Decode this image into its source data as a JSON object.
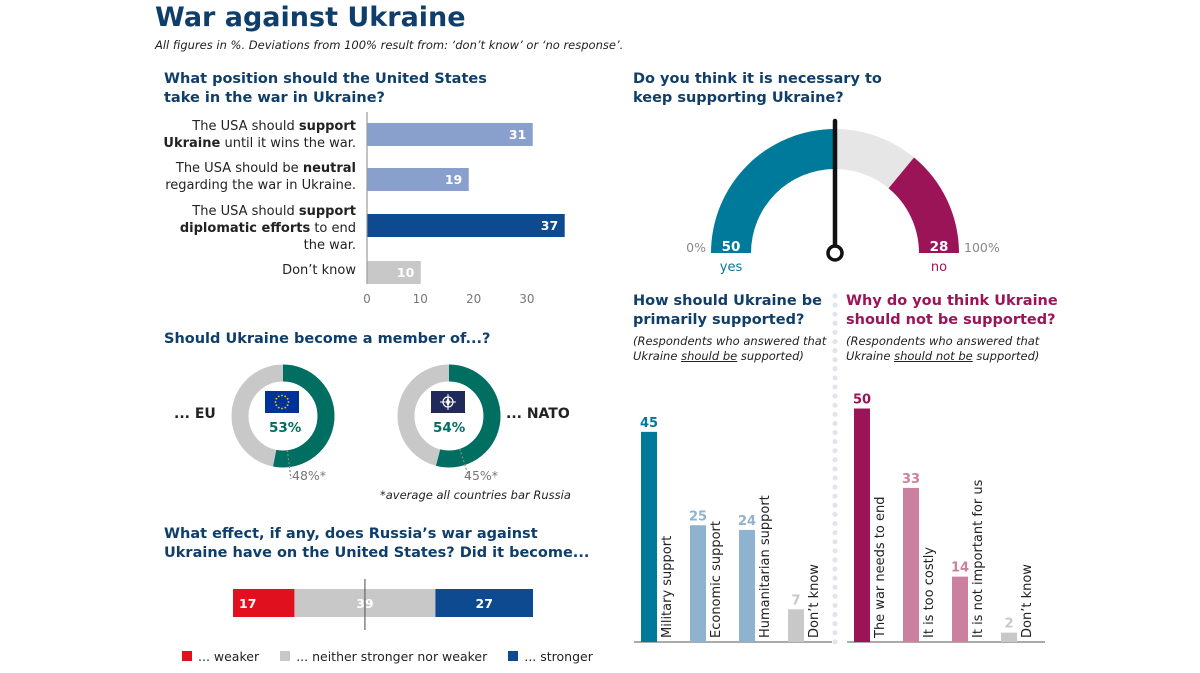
{
  "header": {
    "title": "War against Ukraine",
    "subtitle": "All figures in %. Deviations from 100% result from: ‘don’t know’ or ‘no response’."
  },
  "colors": {
    "navy": "#0f3e6b",
    "teal": "#007a9a",
    "lightblue": "#8aa0cc",
    "darkblue": "#0d4a8f",
    "grey": "#c8c8c8",
    "green": "#006e60",
    "red": "#e0101e",
    "magenta": "#9b1458",
    "pink": "#cc809f",
    "paleblue": "#8fb3cf"
  },
  "q_us_position": {
    "question_line1": "What position should the United States",
    "question_line2": "take in the war in Ukraine?",
    "labels": [
      {
        "pre": "The USA should ",
        "bold": "support",
        "line2_bold": "Ukraine",
        "line2_rest": " until it wins the war.",
        "line3": ""
      },
      {
        "pre": "The USA should be ",
        "bold": "neutral",
        "line2_bold": "",
        "line2_rest": "regarding the war in Ukraine.",
        "line3": ""
      },
      {
        "pre": "The USA should ",
        "bold": "support",
        "line2_bold": "diplomatic efforts",
        "line2_rest": " to end",
        "line3": "the war."
      },
      {
        "pre": "Don’t know",
        "bold": "",
        "line2_bold": "",
        "line2_rest": "",
        "line3": ""
      }
    ]
  },
  "q_membership": {
    "question": "Should Ukraine become a member of...?",
    "eu_label": "... EU",
    "nato_label": "... NATO",
    "footnote": "*average all countries bar Russia"
  },
  "q_effect": {
    "question_line1": "What effect, if any, does Russia’s war against",
    "question_line2": "Ukraine have on the United States? Did it become..."
  },
  "q_support_needed": {
    "question_line1": "Do you think it is necessary to",
    "question_line2": "keep supporting Ukraine?"
  },
  "q_how_support": {
    "question_line1": "How should Ukraine be",
    "question_line2": "primarily supported?",
    "note_line1": "(Respondents who answered that",
    "note_line2_pre": "Ukraine ",
    "note_line2_u": "should be",
    "note_line2_post": " supported)"
  },
  "q_why_not": {
    "question_line1": "Why do you think Ukraine",
    "question_line2": "should not be supported?",
    "note_line1": "(Respondents who answered that",
    "note_line2_pre": "Ukraine ",
    "note_line2_u": "should not be",
    "note_line2_post": " supported)"
  },
  "chart_data": [
    {
      "id": "us_position",
      "type": "bar",
      "orientation": "horizontal",
      "categories": [
        "The USA should support Ukraine until it wins the war.",
        "The USA should be neutral regarding the war in Ukraine.",
        "The USA should support diplomatic efforts to end the war.",
        "Don’t know"
      ],
      "values": [
        31,
        19,
        37,
        10
      ],
      "xlim": [
        0,
        38
      ],
      "xticks": [
        "0",
        "10",
        "20",
        "30"
      ],
      "colors": [
        "#8aa0cc",
        "#8aa0cc",
        "#0d4a8f",
        "#c8c8c8"
      ]
    },
    {
      "id": "eu_membership",
      "type": "pie",
      "values": [
        53,
        47
      ],
      "center_label": "53%",
      "reference_label": "48%*",
      "colors": [
        "#006e60",
        "#c8c8c8"
      ]
    },
    {
      "id": "nato_membership",
      "type": "pie",
      "values": [
        54,
        46
      ],
      "center_label": "54%",
      "reference_label": "45%*",
      "colors": [
        "#006e60",
        "#c8c8c8"
      ]
    },
    {
      "id": "us_effect",
      "type": "bar",
      "orientation": "stacked-horizontal",
      "series": [
        {
          "name": "... weaker",
          "values": [
            17
          ],
          "color": "#e0101e"
        },
        {
          "name": "... neither stronger nor weaker",
          "values": [
            39
          ],
          "color": "#c8c8c8"
        },
        {
          "name": "... stronger",
          "values": [
            27
          ],
          "color": "#0d4a8f"
        }
      ],
      "legend": "bottom"
    },
    {
      "id": "support_needed",
      "type": "pie",
      "style": "gauge",
      "values": {
        "yes": 50,
        "no": 28
      },
      "yes_label": "yes",
      "no_label": "no",
      "min_label": "0%",
      "max_label": "100%",
      "colors": {
        "yes": "#007a9a",
        "no": "#9b1458",
        "rest": "#e6e6e6"
      }
    },
    {
      "id": "how_support",
      "type": "bar",
      "categories": [
        "Military support",
        "Economic support",
        "Humanitarian support",
        "Don’t know"
      ],
      "values": [
        45,
        25,
        24,
        7
      ],
      "colors": [
        "#007a9a",
        "#8fb3cf",
        "#8fb3cf",
        "#c8c8c8"
      ]
    },
    {
      "id": "why_not",
      "type": "bar",
      "categories": [
        "The war needs to end",
        "It is too costly",
        "It is not important for us",
        "Don’t know"
      ],
      "values": [
        50,
        33,
        14,
        2
      ],
      "colors": [
        "#9b1458",
        "#cc809f",
        "#cc809f",
        "#c8c8c8"
      ]
    }
  ]
}
